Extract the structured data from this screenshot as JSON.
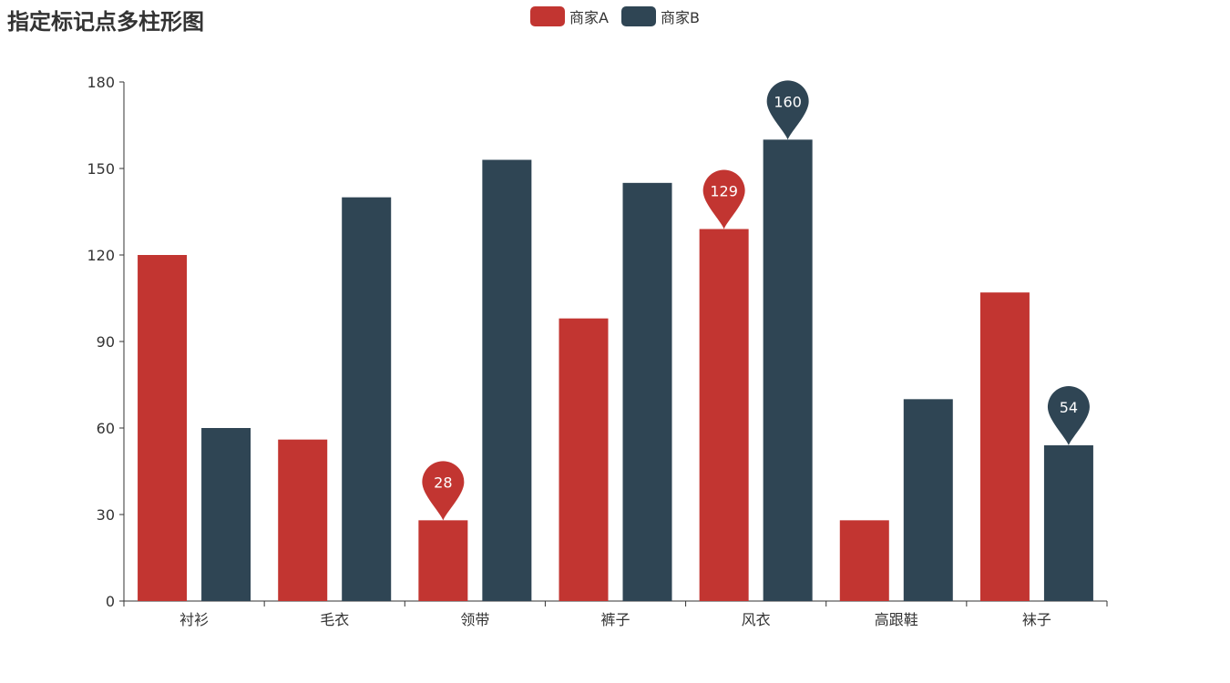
{
  "title": "指定标记点多柱形图",
  "legend": [
    {
      "name": "商家A",
      "color": "#c23531"
    },
    {
      "name": "商家B",
      "color": "#2f4554"
    }
  ],
  "chart_data": {
    "type": "bar",
    "title": "指定标记点多柱形图",
    "categories": [
      "衬衫",
      "毛衣",
      "领带",
      "裤子",
      "风衣",
      "高跟鞋",
      "袜子"
    ],
    "series": [
      {
        "name": "商家A",
        "color": "#c23531",
        "values": [
          120,
          56,
          28,
          98,
          129,
          28,
          107
        ]
      },
      {
        "name": "商家B",
        "color": "#2f4554",
        "values": [
          60,
          140,
          153,
          145,
          160,
          70,
          54
        ]
      }
    ],
    "ylim": [
      0,
      180
    ],
    "yticks": [
      0,
      30,
      60,
      90,
      120,
      150,
      180
    ],
    "grid": false,
    "legend_position": "top-center",
    "mark_points": [
      {
        "series": 0,
        "index": 2,
        "label": "28"
      },
      {
        "series": 0,
        "index": 4,
        "label": "129"
      },
      {
        "series": 1,
        "index": 4,
        "label": "160"
      },
      {
        "series": 1,
        "index": 6,
        "label": "54"
      }
    ]
  }
}
